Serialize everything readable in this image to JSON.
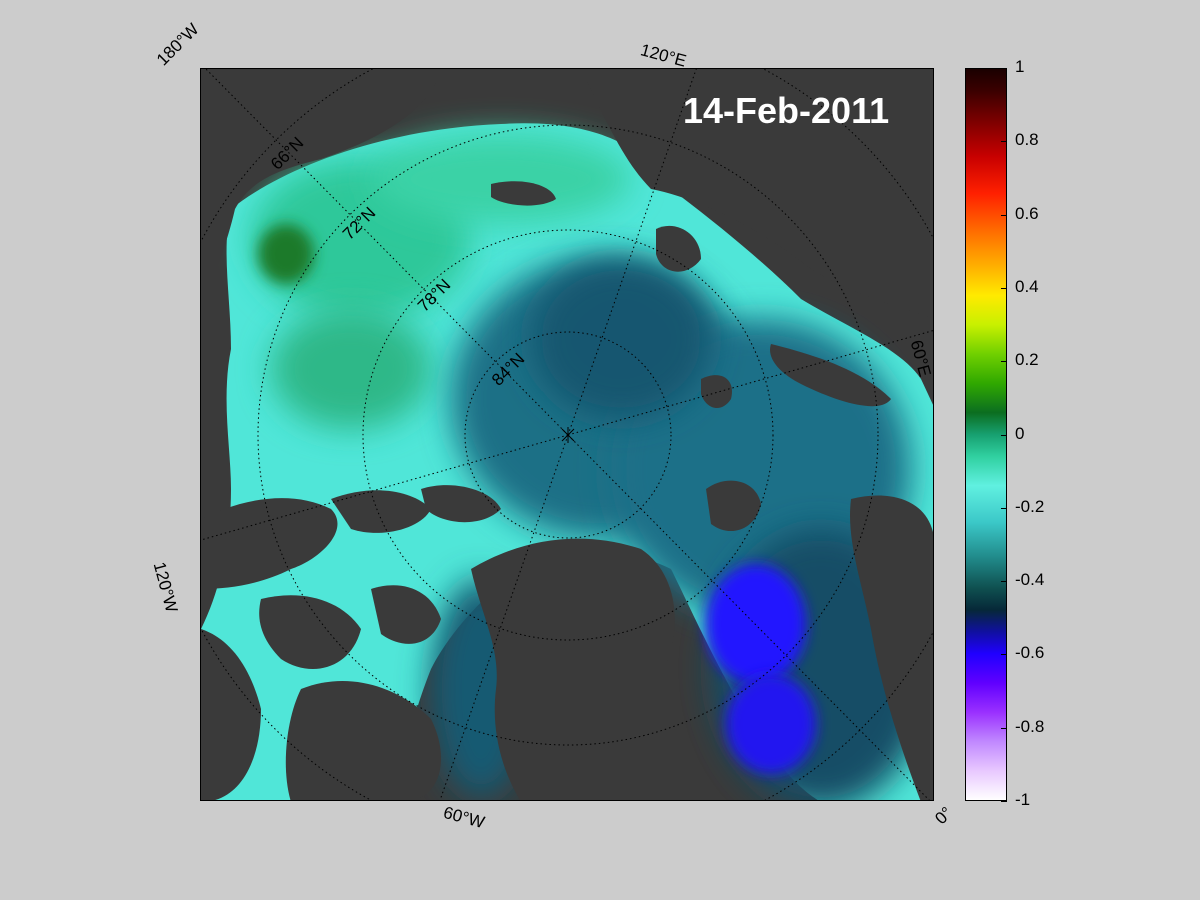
{
  "map": {
    "date": "14-Feb-2011",
    "lon_labels": {
      "top_left": "180°W",
      "top": "120°E",
      "right": "60°E",
      "left": "120°W",
      "bottom": "60°W",
      "bottom_right": "0°"
    },
    "lat_labels": [
      "66°N",
      "72°N",
      "78°N",
      "84°N"
    ],
    "projection": "north-polar-stereographic",
    "land_color": "#3a3a3a",
    "coast_fill_color": "#808080"
  },
  "colorbar": {
    "ticks": [
      "1",
      "0.8",
      "0.6",
      "0.4",
      "0.2",
      "0",
      "-0.2",
      "-0.4",
      "-0.6",
      "-0.8",
      "-1"
    ],
    "range": [
      -1,
      1
    ]
  }
}
